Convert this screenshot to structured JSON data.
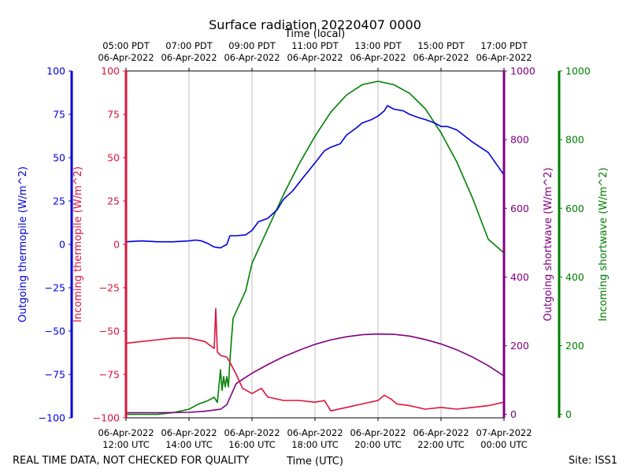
{
  "chart_data": {
    "type": "line",
    "title": "Surface radiation 20220407 0000",
    "top_axis_label": "Time (local)",
    "xlabel": "Time (UTC)",
    "footer_left": "REAL TIME DATA, NOT CHECKED FOR QUALITY",
    "footer_right": "Site: ISS1",
    "x_range_hours_utc": [
      12,
      24
    ],
    "x_ticks_utc": [
      {
        "hour": 12,
        "date": "06-Apr-2022",
        "time": "12:00 UTC"
      },
      {
        "hour": 14,
        "date": "06-Apr-2022",
        "time": "14:00 UTC"
      },
      {
        "hour": 16,
        "date": "06-Apr-2022",
        "time": "16:00 UTC"
      },
      {
        "hour": 18,
        "date": "06-Apr-2022",
        "time": "18:00 UTC"
      },
      {
        "hour": 20,
        "date": "06-Apr-2022",
        "time": "20:00 UTC"
      },
      {
        "hour": 22,
        "date": "06-Apr-2022",
        "time": "22:00 UTC"
      },
      {
        "hour": 24,
        "date": "07-Apr-2022",
        "time": "00:00 UTC"
      }
    ],
    "x_ticks_local": [
      {
        "hour": 12,
        "time": "05:00 PDT",
        "date": "06-Apr-2022"
      },
      {
        "hour": 14,
        "time": "07:00 PDT",
        "date": "06-Apr-2022"
      },
      {
        "hour": 16,
        "time": "09:00 PDT",
        "date": "06-Apr-2022"
      },
      {
        "hour": 18,
        "time": "11:00 PDT",
        "date": "06-Apr-2022"
      },
      {
        "hour": 20,
        "time": "13:00 PDT",
        "date": "06-Apr-2022"
      },
      {
        "hour": 22,
        "time": "15:00 PDT",
        "date": "06-Apr-2022"
      },
      {
        "hour": 24,
        "time": "17:00 PDT",
        "date": "06-Apr-2022"
      }
    ],
    "axes": [
      {
        "id": "outgoing_thermopile",
        "label": "Outgoing thermopile (W/m^2)",
        "color": "#0000dd",
        "ylim": [
          -100,
          100
        ],
        "ticks": [
          -100,
          -75,
          -50,
          -25,
          0,
          25,
          50,
          75,
          100
        ]
      },
      {
        "id": "incoming_thermopile",
        "label": "Incoming thermopile (W/m^2)",
        "color": "#dc143c",
        "ylim": [
          -100,
          100
        ],
        "ticks": [
          -100,
          -75,
          -50,
          -25,
          0,
          25,
          50,
          75,
          100
        ]
      },
      {
        "id": "outgoing_shortwave",
        "label": "Outgoing shortwave (W/m^2)",
        "color": "#800080",
        "ylim": [
          -10,
          1000
        ],
        "ticks": [
          0,
          200,
          400,
          600,
          800,
          1000
        ]
      },
      {
        "id": "incoming_shortwave",
        "label": "Incoming shortwave (W/m^2)",
        "color": "#008000",
        "ylim": [
          -10,
          1000
        ],
        "ticks": [
          0,
          200,
          400,
          600,
          800,
          1000
        ]
      }
    ],
    "series": [
      {
        "name": "Outgoing thermopile",
        "axis": "outgoing_thermopile",
        "color": "#0000dd",
        "x": [
          12,
          12.5,
          13,
          13.5,
          14,
          14.2,
          14.4,
          14.6,
          14.8,
          15,
          15.1,
          15.2,
          15.3,
          15.5,
          15.8,
          16,
          16.2,
          16.5,
          16.8,
          17,
          17.3,
          17.6,
          18,
          18.3,
          18.5,
          18.8,
          19,
          19.3,
          19.5,
          19.8,
          20,
          20.2,
          20.3,
          20.5,
          20.8,
          21,
          21.3,
          21.5,
          21.8,
          22,
          22.2,
          22.5,
          23,
          23.5,
          24
        ],
        "values": [
          1.5,
          2,
          1.5,
          1.5,
          2,
          2.5,
          2,
          0.5,
          -1.5,
          -2,
          -1,
          0,
          5,
          5,
          5.5,
          8,
          13,
          15,
          20,
          26,
          31,
          38,
          47,
          54,
          56,
          58,
          63,
          67,
          70,
          72,
          74,
          77,
          80,
          78,
          77,
          75,
          73,
          72,
          70,
          68,
          68,
          66,
          59,
          53,
          40
        ]
      },
      {
        "name": "Incoming thermopile",
        "axis": "incoming_thermopile",
        "color": "#dc143c",
        "x": [
          12,
          12.5,
          13,
          13.5,
          14,
          14.5,
          14.8,
          14.85,
          14.9,
          15,
          15.2,
          15.3,
          15.5,
          15.7,
          16,
          16.3,
          16.5,
          17,
          17.5,
          18,
          18.3,
          18.5,
          19,
          19.5,
          20,
          20.2,
          20.4,
          20.6,
          21,
          21.5,
          22,
          22.5,
          23,
          23.5,
          24
        ],
        "values": [
          -57,
          -56,
          -55,
          -54,
          -54,
          -56,
          -60,
          -37,
          -62,
          -64,
          -65,
          -68,
          -75,
          -83,
          -86,
          -83,
          -88,
          -90,
          -90,
          -91,
          -90,
          -96,
          -94,
          -92,
          -90,
          -87,
          -89,
          -92,
          -93,
          -95,
          -94,
          -95,
          -94,
          -93,
          -91
        ]
      },
      {
        "name": "Outgoing shortwave",
        "axis": "outgoing_shortwave",
        "color": "#800080",
        "x": [
          12,
          13,
          14,
          14.5,
          15,
          15.2,
          15.5,
          16,
          16.5,
          17,
          17.5,
          18,
          18.5,
          19,
          19.5,
          20,
          20.5,
          21,
          21.5,
          22,
          22.5,
          23,
          23.5,
          24
        ],
        "values": [
          5,
          5,
          6,
          9,
          15,
          28,
          90,
          120,
          145,
          168,
          187,
          204,
          217,
          226,
          232,
          234,
          233,
          228,
          218,
          205,
          188,
          167,
          142,
          112
        ]
      },
      {
        "name": "Incoming shortwave",
        "axis": "incoming_shortwave",
        "color": "#008000",
        "x": [
          12,
          13,
          13.5,
          14,
          14.3,
          14.6,
          14.8,
          14.9,
          15,
          15.05,
          15.1,
          15.15,
          15.2,
          15.25,
          15.3,
          15.4,
          15.8,
          16,
          16.5,
          17,
          17.5,
          18,
          18.5,
          19,
          19.5,
          20,
          20.5,
          21,
          21.5,
          22,
          22.5,
          23,
          23.5,
          24
        ],
        "values": [
          0,
          0,
          5,
          15,
          30,
          40,
          50,
          35,
          130,
          70,
          110,
          80,
          110,
          80,
          160,
          280,
          360,
          440,
          540,
          640,
          730,
          810,
          880,
          930,
          960,
          970,
          960,
          935,
          890,
          820,
          735,
          630,
          510,
          470
        ]
      }
    ]
  }
}
